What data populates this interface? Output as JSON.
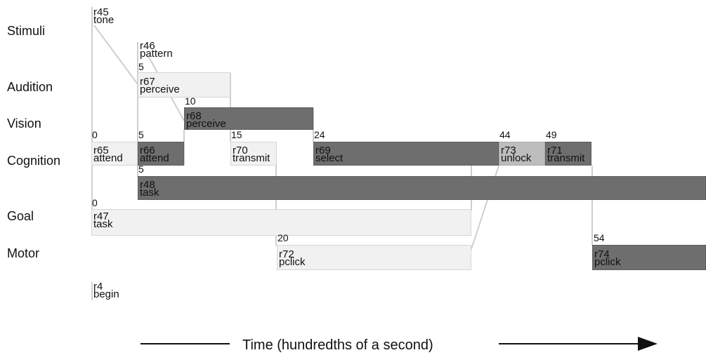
{
  "rows": {
    "stimuli": "Stimuli",
    "audition": "Audition",
    "vision": "Vision",
    "cognition": "Cognition",
    "goal": "Goal",
    "motor": "Motor"
  },
  "ops": {
    "r45": {
      "id": "r45",
      "name": "tone"
    },
    "r46": {
      "id": "r46",
      "name": "pattern"
    },
    "r67": {
      "id": "r67",
      "name": "perceive",
      "start": "5"
    },
    "r68": {
      "id": "r68",
      "name": "perceive",
      "start": "10"
    },
    "r65": {
      "id": "r65",
      "name": "attend",
      "start": "0"
    },
    "r66": {
      "id": "r66",
      "name": "attend",
      "start": "5"
    },
    "r70": {
      "id": "r70",
      "name": "transmit",
      "start": "15"
    },
    "r69": {
      "id": "r69",
      "name": "select",
      "start": "24"
    },
    "r73": {
      "id": "r73",
      "name": "unlock",
      "start": "44"
    },
    "r71": {
      "id": "r71",
      "name": "transmit",
      "start": "49"
    },
    "r48": {
      "id": "r48",
      "name": "task",
      "start": "5"
    },
    "r47": {
      "id": "r47",
      "name": "task",
      "start": "0"
    },
    "r72": {
      "id": "r72",
      "name": "pclick",
      "start": "20"
    },
    "r74": {
      "id": "r74",
      "name": "pclick",
      "start": "54"
    },
    "r4": {
      "id": "r4",
      "name": "begin"
    }
  },
  "axis": {
    "caption": "Time (hundredths of a second)"
  },
  "colors": {
    "light": "#f1f1f1",
    "dark": "#6e6e6e",
    "mid": "#bdbdbd"
  }
}
